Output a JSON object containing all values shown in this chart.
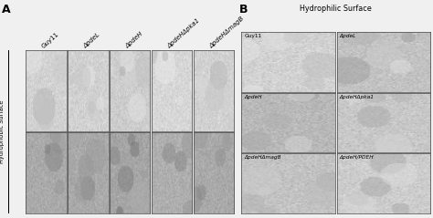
{
  "panel_A_col_labels": [
    "Guy11",
    "ΔpdeL",
    "ΔpdeH",
    "ΔpdeHΔpka1",
    "ΔpdeHΔmagB"
  ],
  "panel_A_row_label": "Hydrophobic Surface",
  "panel_B_title": "Hydrophilic Surface",
  "panel_B_labels": [
    [
      "Guy11",
      "ΔpdeL"
    ],
    [
      "ΔpdeH",
      "ΔpdeHΔpka1"
    ],
    [
      "ΔpdeHΔmagB",
      "ΔpdeH/PDEH"
    ]
  ],
  "label_A": "A",
  "label_B": "B",
  "fig_bg": "#f0f0f0",
  "font_size_panel_label": 9,
  "font_size_col_label": 5.0,
  "font_size_cell_label": 4.2,
  "font_size_row_label": 4.8,
  "font_size_title": 5.8,
  "italic_col_labels": [
    false,
    true,
    true,
    true,
    true
  ],
  "italic_cell_labels": [
    [
      false,
      true
    ],
    [
      true,
      true
    ],
    [
      true,
      true
    ]
  ],
  "A_bg_row0": [
    210,
    210,
    205,
    215,
    210
  ],
  "A_bg_row1": [
    170,
    170,
    165,
    175,
    170
  ],
  "B_bg": [
    210,
    195,
    185,
    200,
    195,
    205
  ]
}
